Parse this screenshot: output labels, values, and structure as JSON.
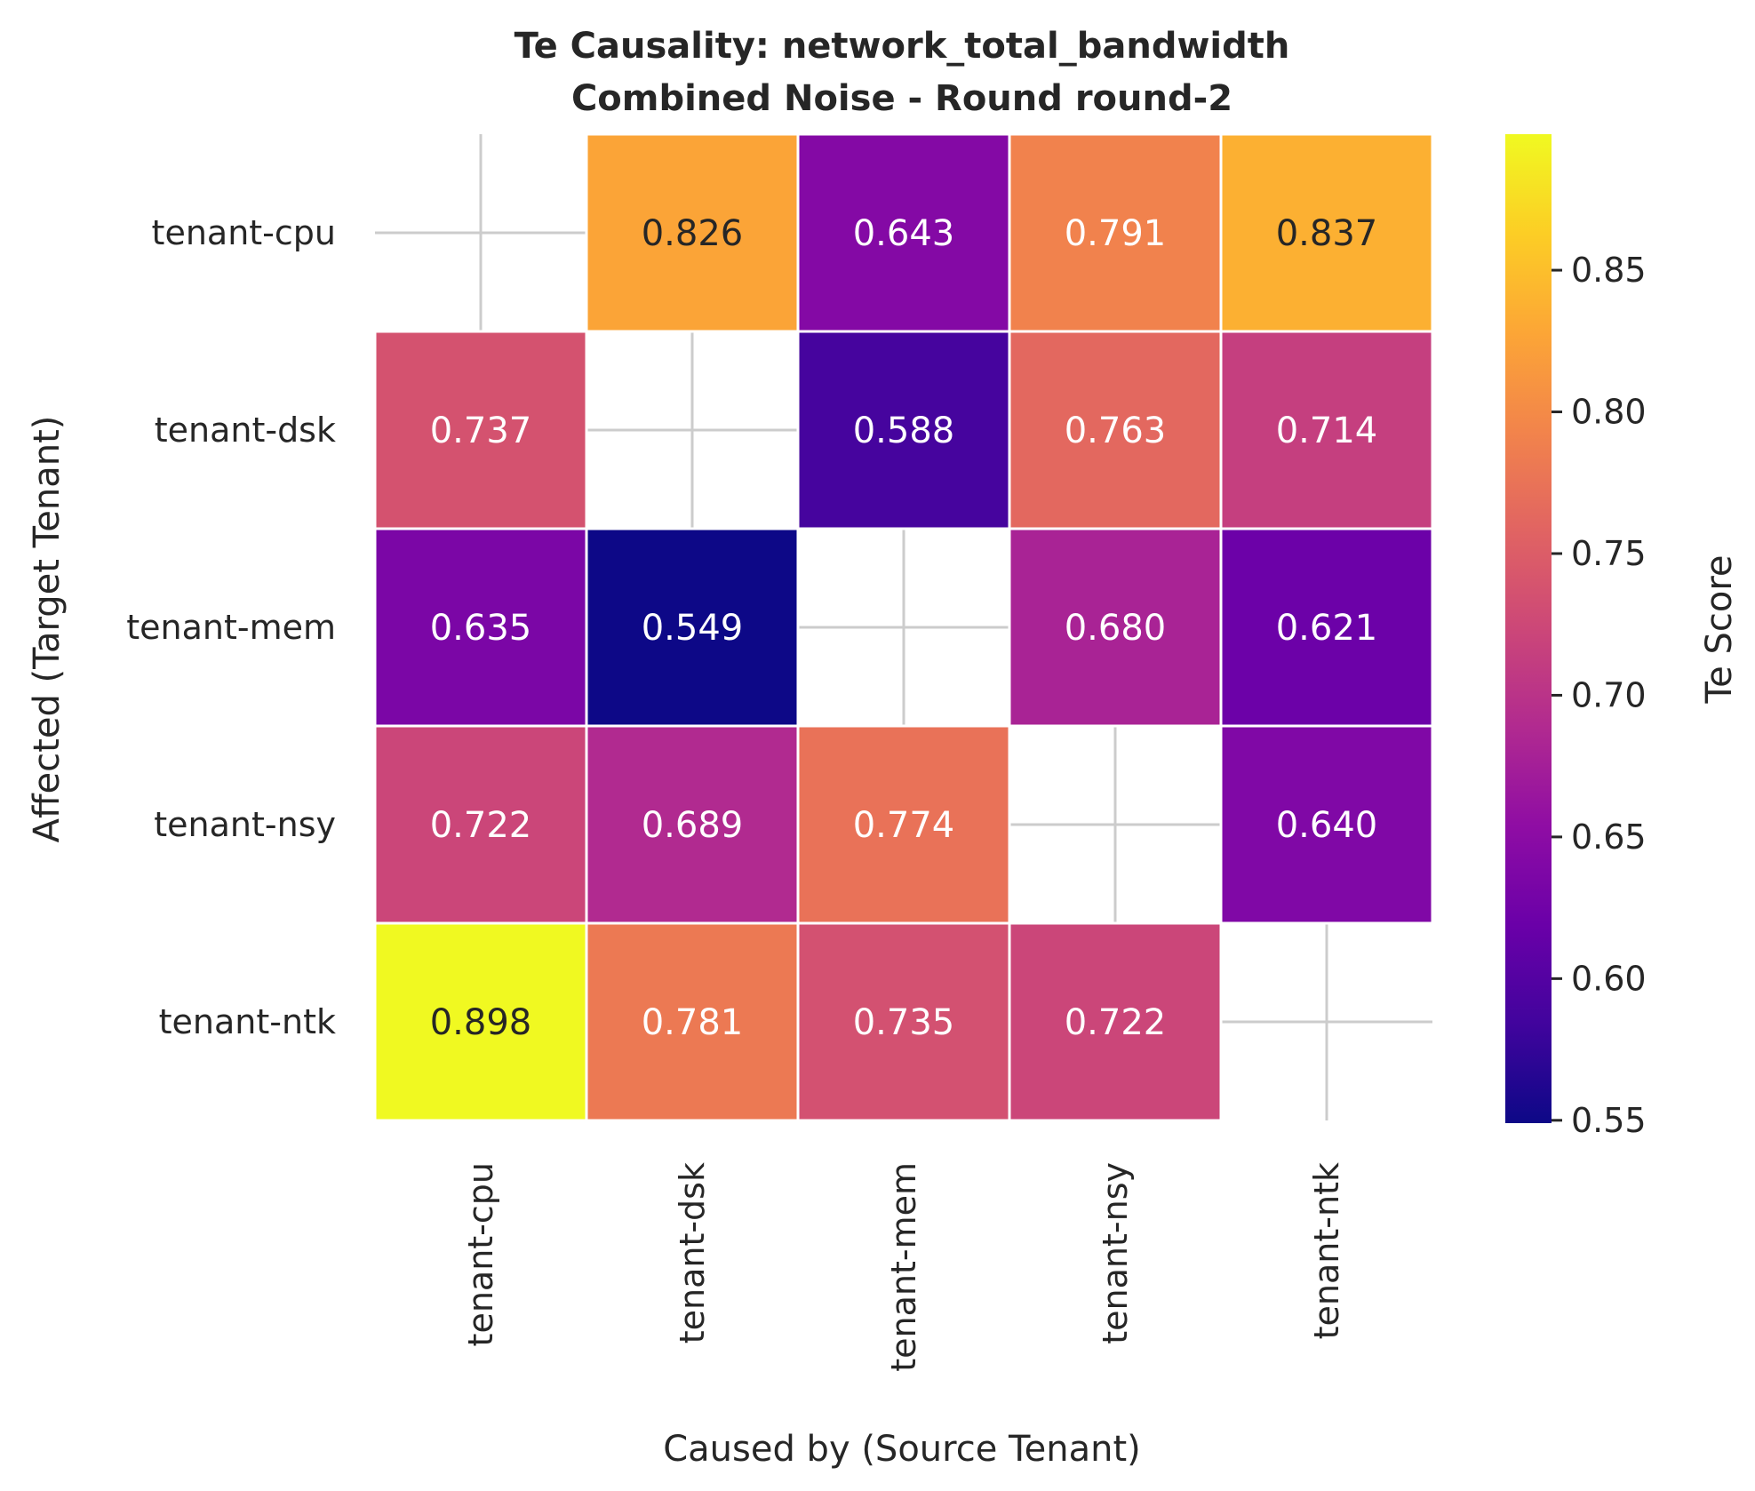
{
  "chart_data": {
    "type": "heatmap",
    "title": "Te Causality: network_total_bandwidth",
    "subtitle": "Combined Noise - Round round-2",
    "xlabel": "Caused by (Source Tenant)",
    "ylabel": "Affected (Target Tenant)",
    "x_categories": [
      "tenant-cpu",
      "tenant-dsk",
      "tenant-mem",
      "tenant-nsy",
      "tenant-ntk"
    ],
    "y_categories": [
      "tenant-cpu",
      "tenant-dsk",
      "tenant-mem",
      "tenant-nsy",
      "tenant-ntk"
    ],
    "values": [
      [
        null,
        0.826,
        0.643,
        0.791,
        0.837
      ],
      [
        0.737,
        null,
        0.588,
        0.763,
        0.714
      ],
      [
        0.635,
        0.549,
        null,
        0.68,
        0.621
      ],
      [
        0.722,
        0.689,
        0.774,
        null,
        0.64
      ],
      [
        0.898,
        0.781,
        0.735,
        0.722,
        null
      ]
    ],
    "value_format": "0.000",
    "colorbar": {
      "label": "Te Score",
      "colormap": "plasma",
      "range": [
        0.549,
        0.898
      ],
      "ticks": [
        "0.55",
        "0.60",
        "0.65",
        "0.70",
        "0.75",
        "0.80",
        "0.85"
      ]
    },
    "grid": true,
    "legend": "colorbar-right"
  }
}
